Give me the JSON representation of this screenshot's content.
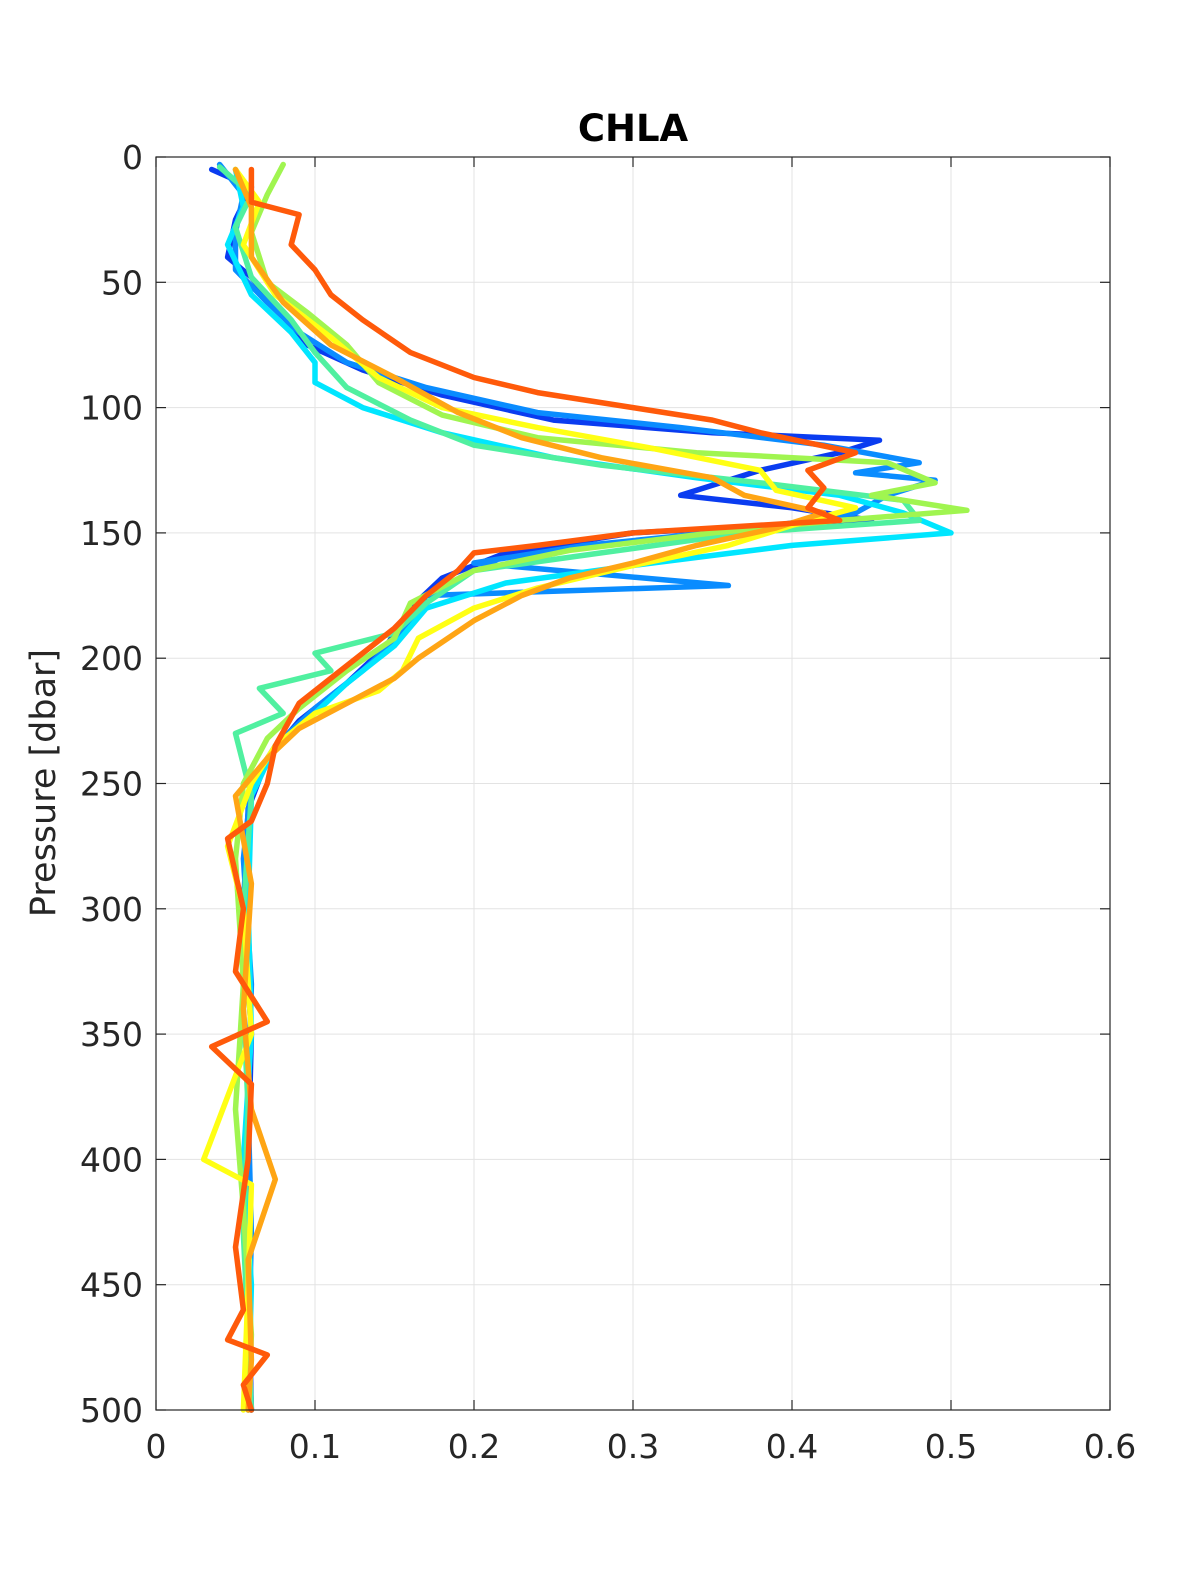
{
  "chart_data": {
    "type": "line",
    "title": "CHLA",
    "xlabel": "",
    "ylabel": "Pressure [dbar]",
    "xlim": [
      0,
      0.6
    ],
    "ylim": [
      0,
      500
    ],
    "y_reversed": true,
    "x_ticks": [
      "0",
      "0.1",
      "0.2",
      "0.3",
      "0.4",
      "0.5",
      "0.6"
    ],
    "y_ticks": [
      "0",
      "50",
      "100",
      "150",
      "200",
      "250",
      "300",
      "350",
      "400",
      "450",
      "500"
    ],
    "grid": true,
    "legend": "none",
    "series": [
      {
        "color": "#0a3cf0",
        "points": [
          [
            0.035,
            5
          ],
          [
            0.06,
            12
          ],
          [
            0.05,
            25
          ],
          [
            0.045,
            40
          ],
          [
            0.06,
            48
          ],
          [
            0.075,
            60
          ],
          [
            0.095,
            75
          ],
          [
            0.13,
            85
          ],
          [
            0.18,
            95
          ],
          [
            0.25,
            105
          ],
          [
            0.35,
            110
          ],
          [
            0.455,
            113
          ],
          [
            0.43,
            118
          ],
          [
            0.38,
            125
          ],
          [
            0.33,
            135
          ],
          [
            0.4,
            140
          ],
          [
            0.45,
            145
          ],
          [
            0.3,
            150
          ],
          [
            0.22,
            158
          ],
          [
            0.18,
            168
          ],
          [
            0.16,
            180
          ],
          [
            0.145,
            195
          ],
          [
            0.12,
            210
          ],
          [
            0.09,
            225
          ],
          [
            0.07,
            240
          ],
          [
            0.058,
            260
          ],
          [
            0.055,
            300
          ],
          [
            0.06,
            350
          ],
          [
            0.058,
            400
          ],
          [
            0.058,
            450
          ],
          [
            0.06,
            500
          ]
        ]
      },
      {
        "color": "#0a8cff",
        "points": [
          [
            0.04,
            3
          ],
          [
            0.055,
            15
          ],
          [
            0.05,
            30
          ],
          [
            0.05,
            45
          ],
          [
            0.07,
            58
          ],
          [
            0.09,
            70
          ],
          [
            0.12,
            82
          ],
          [
            0.17,
            92
          ],
          [
            0.24,
            102
          ],
          [
            0.33,
            108
          ],
          [
            0.42,
            115
          ],
          [
            0.48,
            122
          ],
          [
            0.44,
            126
          ],
          [
            0.49,
            129
          ],
          [
            0.46,
            135
          ],
          [
            0.44,
            142
          ],
          [
            0.38,
            148
          ],
          [
            0.27,
            155
          ],
          [
            0.2,
            162
          ],
          [
            0.36,
            171
          ],
          [
            0.17,
            175
          ],
          [
            0.155,
            190
          ],
          [
            0.13,
            205
          ],
          [
            0.1,
            220
          ],
          [
            0.075,
            235
          ],
          [
            0.06,
            250
          ],
          [
            0.055,
            280
          ],
          [
            0.06,
            330
          ],
          [
            0.058,
            380
          ],
          [
            0.06,
            430
          ],
          [
            0.058,
            480
          ],
          [
            0.06,
            500
          ]
        ]
      },
      {
        "color": "#00e6ff",
        "points": [
          [
            0.05,
            5
          ],
          [
            0.055,
            20
          ],
          [
            0.045,
            35
          ],
          [
            0.06,
            55
          ],
          [
            0.085,
            70
          ],
          [
            0.1,
            82
          ],
          [
            0.1,
            90
          ],
          [
            0.13,
            100
          ],
          [
            0.18,
            110
          ],
          [
            0.25,
            120
          ],
          [
            0.34,
            128
          ],
          [
            0.43,
            135
          ],
          [
            0.47,
            142
          ],
          [
            0.5,
            150
          ],
          [
            0.4,
            155
          ],
          [
            0.3,
            163
          ],
          [
            0.22,
            170
          ],
          [
            0.17,
            180
          ],
          [
            0.15,
            195
          ],
          [
            0.12,
            210
          ],
          [
            0.1,
            222
          ],
          [
            0.075,
            235
          ],
          [
            0.06,
            255
          ],
          [
            0.058,
            300
          ],
          [
            0.06,
            350
          ],
          [
            0.055,
            400
          ],
          [
            0.06,
            450
          ],
          [
            0.058,
            500
          ]
        ]
      },
      {
        "color": "#50f0a0",
        "points": [
          [
            0.04,
            4
          ],
          [
            0.06,
            15
          ],
          [
            0.05,
            28
          ],
          [
            0.06,
            48
          ],
          [
            0.085,
            65
          ],
          [
            0.1,
            78
          ],
          [
            0.12,
            92
          ],
          [
            0.16,
            105
          ],
          [
            0.2,
            115
          ],
          [
            0.28,
            123
          ],
          [
            0.38,
            130
          ],
          [
            0.47,
            137
          ],
          [
            0.48,
            145
          ],
          [
            0.37,
            150
          ],
          [
            0.28,
            158
          ],
          [
            0.2,
            165
          ],
          [
            0.17,
            178
          ],
          [
            0.15,
            190
          ],
          [
            0.1,
            198
          ],
          [
            0.11,
            205
          ],
          [
            0.065,
            212
          ],
          [
            0.08,
            222
          ],
          [
            0.05,
            230
          ],
          [
            0.06,
            255
          ],
          [
            0.055,
            300
          ],
          [
            0.055,
            340
          ],
          [
            0.058,
            380
          ],
          [
            0.055,
            430
          ],
          [
            0.058,
            470
          ],
          [
            0.06,
            500
          ]
        ]
      },
      {
        "color": "#a0f550",
        "points": [
          [
            0.08,
            3
          ],
          [
            0.07,
            15
          ],
          [
            0.06,
            30
          ],
          [
            0.07,
            50
          ],
          [
            0.095,
            62
          ],
          [
            0.12,
            75
          ],
          [
            0.14,
            90
          ],
          [
            0.18,
            103
          ],
          [
            0.24,
            112
          ],
          [
            0.34,
            118
          ],
          [
            0.46,
            122
          ],
          [
            0.49,
            130
          ],
          [
            0.45,
            135
          ],
          [
            0.51,
            141
          ],
          [
            0.43,
            145
          ],
          [
            0.35,
            150
          ],
          [
            0.26,
            157
          ],
          [
            0.2,
            165
          ],
          [
            0.16,
            178
          ],
          [
            0.15,
            192
          ],
          [
            0.12,
            205
          ],
          [
            0.09,
            220
          ],
          [
            0.07,
            232
          ],
          [
            0.055,
            250
          ],
          [
            0.05,
            280
          ],
          [
            0.055,
            330
          ],
          [
            0.05,
            380
          ],
          [
            0.055,
            420
          ],
          [
            0.06,
            470
          ],
          [
            0.058,
            500
          ]
        ]
      },
      {
        "color": "#ffff14",
        "points": [
          [
            0.05,
            5
          ],
          [
            0.065,
            18
          ],
          [
            0.055,
            35
          ],
          [
            0.075,
            55
          ],
          [
            0.11,
            72
          ],
          [
            0.14,
            88
          ],
          [
            0.18,
            100
          ],
          [
            0.24,
            108
          ],
          [
            0.31,
            116
          ],
          [
            0.38,
            125
          ],
          [
            0.39,
            133
          ],
          [
            0.44,
            140
          ],
          [
            0.4,
            147
          ],
          [
            0.36,
            155
          ],
          [
            0.3,
            163
          ],
          [
            0.24,
            172
          ],
          [
            0.2,
            180
          ],
          [
            0.165,
            192
          ],
          [
            0.155,
            205
          ],
          [
            0.14,
            213
          ],
          [
            0.1,
            222
          ],
          [
            0.075,
            235
          ],
          [
            0.06,
            250
          ],
          [
            0.045,
            275
          ],
          [
            0.055,
            300
          ],
          [
            0.06,
            350
          ],
          [
            0.03,
            400
          ],
          [
            0.06,
            410
          ],
          [
            0.058,
            450
          ],
          [
            0.055,
            500
          ]
        ]
      },
      {
        "color": "#ffa514",
        "points": [
          [
            0.05,
            5
          ],
          [
            0.06,
            20
          ],
          [
            0.06,
            40
          ],
          [
            0.08,
            58
          ],
          [
            0.11,
            75
          ],
          [
            0.15,
            88
          ],
          [
            0.19,
            102
          ],
          [
            0.23,
            112
          ],
          [
            0.28,
            120
          ],
          [
            0.35,
            128
          ],
          [
            0.37,
            135
          ],
          [
            0.42,
            142
          ],
          [
            0.39,
            148
          ],
          [
            0.34,
            155
          ],
          [
            0.3,
            162
          ],
          [
            0.26,
            168
          ],
          [
            0.23,
            175
          ],
          [
            0.2,
            185
          ],
          [
            0.165,
            200
          ],
          [
            0.15,
            208
          ],
          [
            0.12,
            218
          ],
          [
            0.09,
            228
          ],
          [
            0.07,
            240
          ],
          [
            0.05,
            255
          ],
          [
            0.06,
            290
          ],
          [
            0.055,
            340
          ],
          [
            0.06,
            380
          ],
          [
            0.075,
            408
          ],
          [
            0.058,
            440
          ],
          [
            0.06,
            480
          ],
          [
            0.058,
            500
          ]
        ]
      },
      {
        "color": "#ff5a0a",
        "points": [
          [
            0.06,
            5
          ],
          [
            0.06,
            18
          ],
          [
            0.09,
            23
          ],
          [
            0.085,
            35
          ],
          [
            0.1,
            45
          ],
          [
            0.11,
            55
          ],
          [
            0.13,
            65
          ],
          [
            0.16,
            78
          ],
          [
            0.2,
            88
          ],
          [
            0.24,
            94
          ],
          [
            0.3,
            100
          ],
          [
            0.35,
            105
          ],
          [
            0.38,
            110
          ],
          [
            0.44,
            118
          ],
          [
            0.41,
            125
          ],
          [
            0.42,
            132
          ],
          [
            0.41,
            140
          ],
          [
            0.43,
            145
          ],
          [
            0.3,
            150
          ],
          [
            0.24,
            155
          ],
          [
            0.2,
            158
          ],
          [
            0.19,
            165
          ],
          [
            0.17,
            175
          ],
          [
            0.15,
            188
          ],
          [
            0.13,
            198
          ],
          [
            0.11,
            208
          ],
          [
            0.09,
            218
          ],
          [
            0.075,
            235
          ],
          [
            0.07,
            250
          ],
          [
            0.06,
            265
          ],
          [
            0.045,
            272
          ],
          [
            0.055,
            300
          ],
          [
            0.05,
            325
          ],
          [
            0.07,
            345
          ],
          [
            0.035,
            355
          ],
          [
            0.06,
            370
          ],
          [
            0.058,
            400
          ],
          [
            0.05,
            435
          ],
          [
            0.055,
            460
          ],
          [
            0.045,
            472
          ],
          [
            0.07,
            478
          ],
          [
            0.055,
            490
          ],
          [
            0.06,
            500
          ]
        ]
      }
    ]
  }
}
